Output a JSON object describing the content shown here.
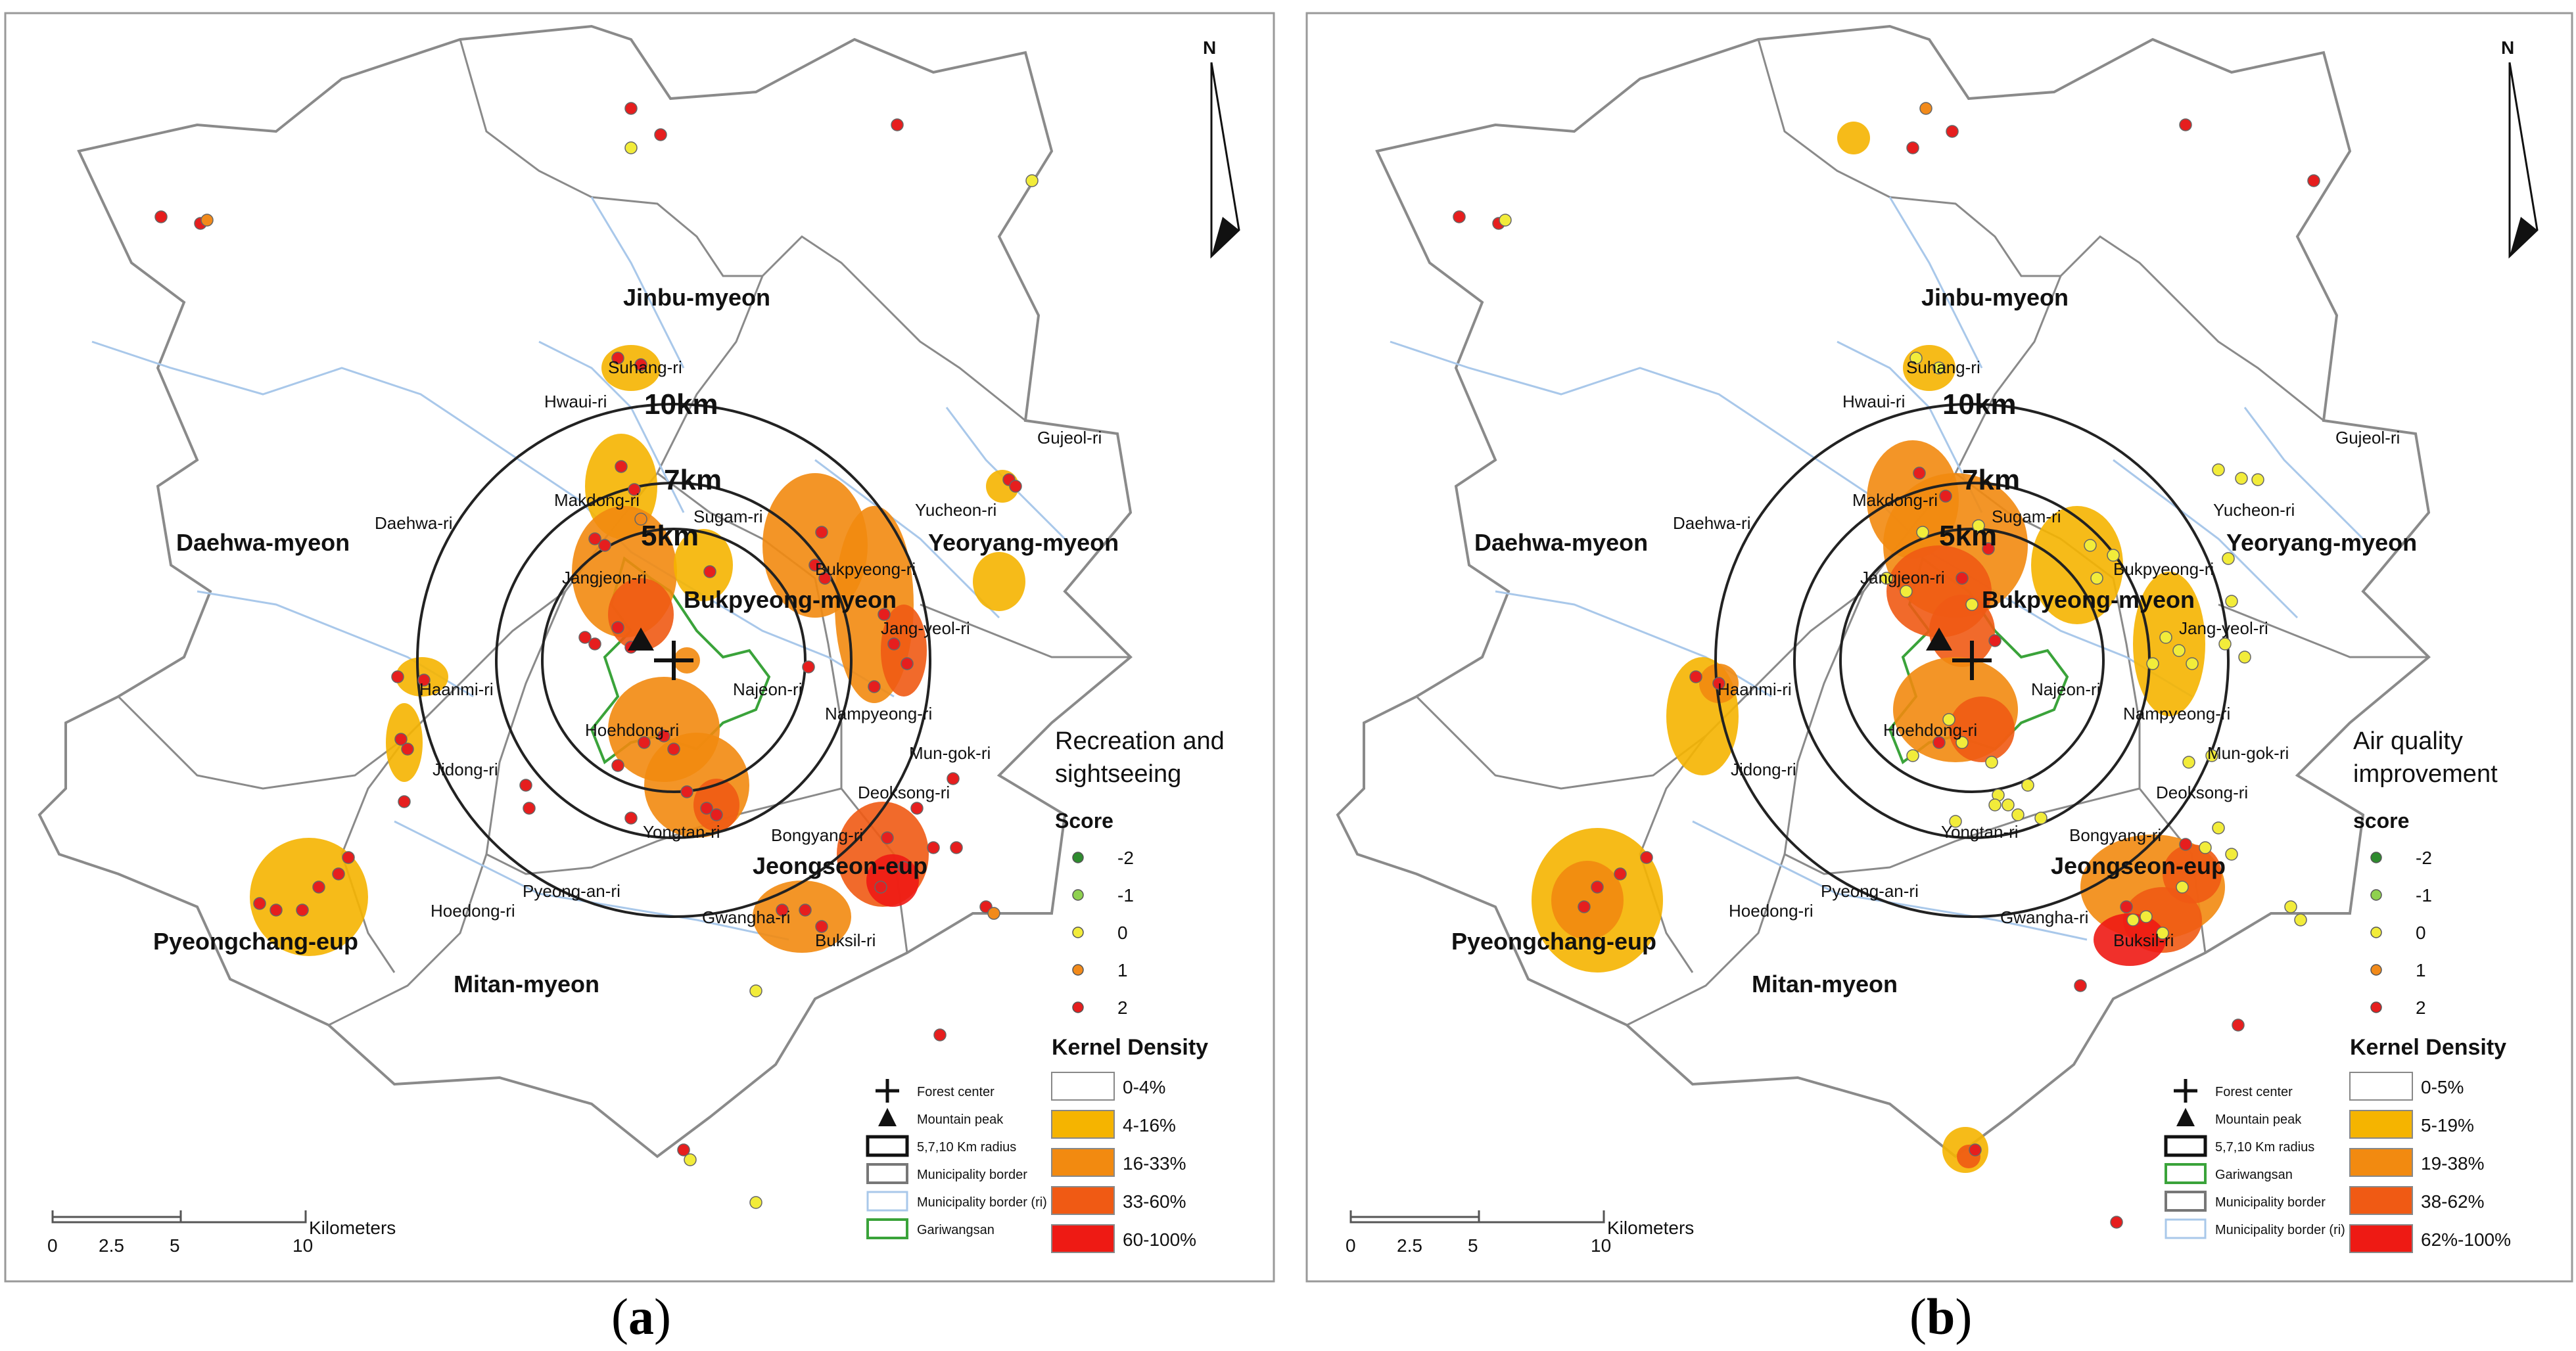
{
  "figure": {
    "panels": [
      {
        "id": "a",
        "caption_open": "(",
        "caption_letter": "a",
        "caption_close": ")",
        "north_label": "N",
        "legend_title_line1": "Recreation and",
        "legend_title_line2": "sightseeing",
        "score_title": "Score",
        "scores": [
          "-2",
          "-1",
          "0",
          "1",
          "2"
        ],
        "kd_title": "Kernel Density",
        "kd_classes": [
          "0-4%",
          "4-16%",
          "16-33%",
          "33-60%",
          "60-100%"
        ],
        "symbols": [
          "Forest center",
          "Mountain peak",
          "5,7,10 Km radius",
          "Municipality border",
          "Municipality border (ri)",
          "Gariwangsan"
        ],
        "scalebar_ticks": [
          "0",
          "2.5",
          "5",
          "10"
        ],
        "scalebar_unit": "Kilometers"
      },
      {
        "id": "b",
        "caption_open": "(",
        "caption_letter": "b",
        "caption_close": ")",
        "north_label": "N",
        "legend_title_line1": "Air quality",
        "legend_title_line2": "improvement",
        "score_title": "score",
        "scores": [
          "-2",
          "-1",
          "0",
          "1",
          "2"
        ],
        "kd_title": "Kernel Density",
        "kd_classes": [
          "0-5%",
          "5-19%",
          "19-38%",
          "38-62%",
          "62%-100%"
        ],
        "symbols": [
          "Forest center",
          "Mountain peak",
          "5,7,10 Km radius",
          "Gariwangsan",
          "Municipality border",
          "Municipality border (ri)"
        ],
        "scalebar_ticks": [
          "0",
          "2.5",
          "5",
          "10"
        ],
        "scalebar_unit": "Kilometers"
      }
    ]
  },
  "regions": {
    "jinbu": "Jinbu-myeon",
    "daehwa": "Daehwa-myeon",
    "yeoryang": "Yeoryang-myeon",
    "bukpyeong": "Bukpyeong-myeon",
    "jeongseon": "Jeongseon-eup",
    "pyeongchang": "Pyeongchang-eup",
    "mitan": "Mitan-myeon"
  },
  "villages": {
    "suhang": "Suhang-ri",
    "hwaui": "Hwaui-ri",
    "gujeol": "Gujeol-ri",
    "makdong": "Makdong-ri",
    "daehwari": "Daehwa-ri",
    "sugam": "Sugam-ri",
    "yucheon": "Yucheon-ri",
    "jangjeon": "Jangjeon-ri",
    "bukpyeongri": "Bukpyeong-ri",
    "jangyeol": "Jang-yeol-ri",
    "haanmi": "Haanmi-ri",
    "najeon": "Najeon-ri",
    "hoehdong": "Hoehdong-ri",
    "nampyeong": "Nampyeong-ri",
    "mungok": "Mun-gok-ri",
    "jidong": "Jidong-ri",
    "deoksong": "Deoksong-ri",
    "yongtan": "Yongtan-ri",
    "bongyang": "Bongyang-ri",
    "pyeongan": "Pyeong-an-ri",
    "hoedong": "Hoedong-ri",
    "gwangha": "Gwangha-ri",
    "buksil": "Buksil-ri"
  },
  "radii": {
    "r10": "10km",
    "r7": "7km",
    "r5": "5km"
  },
  "colors": {
    "kd": [
      "#ffffff",
      "#f5b400",
      "#f28a10",
      "#f05a14",
      "#ee1a14"
    ],
    "score": [
      "#2e8b2e",
      "#8fd14f",
      "#f2ec3a",
      "#f28a1a",
      "#e61e1e"
    ],
    "green_boundary": "#3aa33a",
    "river": "#a9c8ea",
    "border": "#888888"
  }
}
